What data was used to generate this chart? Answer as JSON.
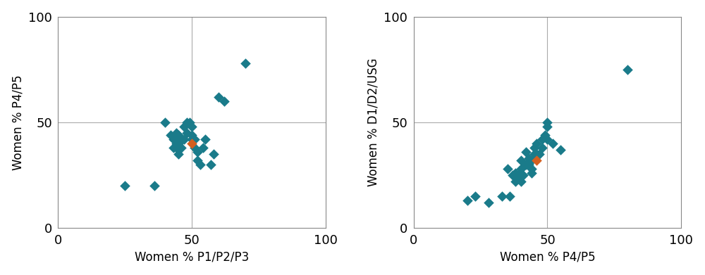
{
  "plot1": {
    "xlabel": "Women % P1/P2/P3",
    "ylabel": "Women % P4/P5",
    "points_teal": [
      [
        25,
        20
      ],
      [
        36,
        20
      ],
      [
        40,
        50
      ],
      [
        42,
        44
      ],
      [
        43,
        42
      ],
      [
        43,
        38
      ],
      [
        44,
        45
      ],
      [
        44,
        40
      ],
      [
        44,
        38
      ],
      [
        45,
        44
      ],
      [
        45,
        40
      ],
      [
        45,
        35
      ],
      [
        46,
        42
      ],
      [
        46,
        38
      ],
      [
        47,
        48
      ],
      [
        47,
        42
      ],
      [
        48,
        45
      ],
      [
        48,
        50
      ],
      [
        49,
        50
      ],
      [
        50,
        48
      ],
      [
        50,
        44
      ],
      [
        50,
        42
      ],
      [
        51,
        42
      ],
      [
        51,
        38
      ],
      [
        52,
        36
      ],
      [
        52,
        32
      ],
      [
        53,
        30
      ],
      [
        54,
        38
      ],
      [
        55,
        42
      ],
      [
        57,
        30
      ],
      [
        58,
        35
      ],
      [
        60,
        62
      ],
      [
        62,
        60
      ],
      [
        70,
        78
      ]
    ],
    "point_orange": [
      50,
      40
    ],
    "vline": 50,
    "hline": 50,
    "xlim": [
      0,
      100
    ],
    "ylim": [
      0,
      100
    ],
    "xticks": [
      0,
      50,
      100
    ],
    "yticks": [
      0,
      50,
      100
    ]
  },
  "plot2": {
    "xlabel": "Women % P4/P5",
    "ylabel": "Women % D1/D2/USG",
    "points_teal": [
      [
        20,
        13
      ],
      [
        23,
        15
      ],
      [
        28,
        12
      ],
      [
        33,
        15
      ],
      [
        35,
        28
      ],
      [
        36,
        15
      ],
      [
        37,
        25
      ],
      [
        38,
        22
      ],
      [
        38,
        26
      ],
      [
        39,
        25
      ],
      [
        40,
        22
      ],
      [
        40,
        28
      ],
      [
        40,
        32
      ],
      [
        41,
        25
      ],
      [
        42,
        30
      ],
      [
        42,
        36
      ],
      [
        43,
        30
      ],
      [
        43,
        33
      ],
      [
        44,
        28
      ],
      [
        44,
        32
      ],
      [
        44,
        26
      ],
      [
        45,
        35
      ],
      [
        45,
        38
      ],
      [
        46,
        35
      ],
      [
        46,
        40
      ],
      [
        47,
        35
      ],
      [
        48,
        38
      ],
      [
        48,
        42
      ],
      [
        49,
        44
      ],
      [
        50,
        42
      ],
      [
        50,
        48
      ],
      [
        50,
        50
      ],
      [
        52,
        40
      ],
      [
        55,
        37
      ],
      [
        80,
        75
      ]
    ],
    "point_orange": [
      46,
      32
    ],
    "vline": 50,
    "hline": 50,
    "xlim": [
      0,
      100
    ],
    "ylim": [
      0,
      100
    ],
    "xticks": [
      0,
      50,
      100
    ],
    "yticks": [
      0,
      50,
      100
    ]
  },
  "teal_color": "#1a7b8a",
  "orange_color": "#d45f20",
  "marker_size": 55,
  "background_color": "#ffffff",
  "figsize": [
    10.0,
    3.91
  ],
  "dpi": 100,
  "spine_color": "#888888",
  "refline_color": "#aaaaaa",
  "tick_fontsize": 13,
  "label_fontsize": 12
}
